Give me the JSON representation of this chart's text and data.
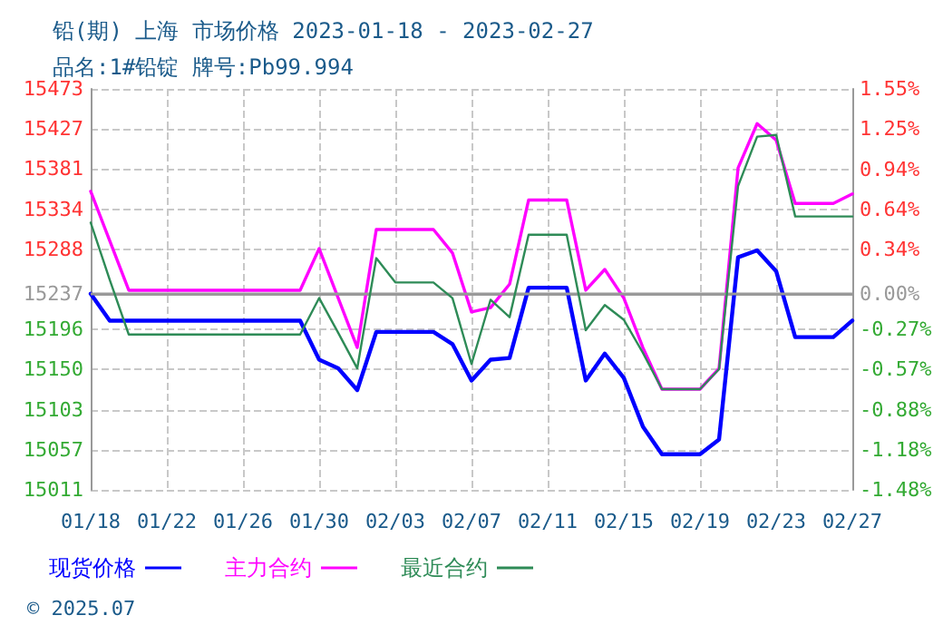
{
  "chart_data": {
    "type": "line",
    "title": "铅(期) 上海 市场价格 2023-01-18 - 2023-02-27",
    "subtitle": "品名:1#铅锭 牌号:Pb99.994",
    "x": [
      "2023-01-18",
      "2023-01-19",
      "2023-01-20",
      "2023-01-21",
      "2023-01-22",
      "2023-01-23",
      "2023-01-24",
      "2023-01-25",
      "2023-01-26",
      "2023-01-27",
      "2023-01-28",
      "2023-01-29",
      "2023-01-30",
      "2023-01-31",
      "2023-02-01",
      "2023-02-02",
      "2023-02-03",
      "2023-02-04",
      "2023-02-05",
      "2023-02-06",
      "2023-02-07",
      "2023-02-08",
      "2023-02-09",
      "2023-02-10",
      "2023-02-11",
      "2023-02-12",
      "2023-02-13",
      "2023-02-14",
      "2023-02-15",
      "2023-02-16",
      "2023-02-17",
      "2023-02-18",
      "2023-02-19",
      "2023-02-20",
      "2023-02-21",
      "2023-02-22",
      "2023-02-23",
      "2023-02-24",
      "2023-02-25",
      "2023-02-26",
      "2023-02-27"
    ],
    "series": [
      {
        "name": "现货价格",
        "color": "#0000ff",
        "values": [
          15237,
          15206,
          15206,
          15206,
          15206,
          15206,
          15206,
          15206,
          15206,
          15206,
          15206,
          15206,
          15161,
          15151,
          15126,
          15193,
          15193,
          15193,
          15193,
          15179,
          15137,
          15161,
          15163,
          15244,
          15244,
          15244,
          15137,
          15168,
          15140,
          15084,
          15052,
          15052,
          15052,
          15069,
          15279,
          15287,
          15263,
          15187,
          15187,
          15187,
          15206
        ]
      },
      {
        "name": "主力合约",
        "color": "#ff00ff",
        "values": [
          15355,
          15298,
          15241,
          15241,
          15241,
          15241,
          15241,
          15241,
          15241,
          15241,
          15241,
          15241,
          15289,
          15232,
          15175,
          15311,
          15311,
          15311,
          15311,
          15284,
          15216,
          15221,
          15248,
          15345,
          15345,
          15345,
          15241,
          15265,
          15232,
          15175,
          15127,
          15127,
          15127,
          15151,
          15382,
          15433,
          15414,
          15341,
          15341,
          15341,
          15352
        ]
      },
      {
        "name": "最近合约",
        "color": "#2e8b57",
        "values": [
          15319,
          15253,
          15190,
          15190,
          15190,
          15190,
          15190,
          15190,
          15190,
          15190,
          15190,
          15190,
          15232,
          15192,
          15151,
          15278,
          15250,
          15250,
          15250,
          15232,
          15156,
          15230,
          15210,
          15305,
          15305,
          15305,
          15195,
          15224,
          15207,
          15169,
          15127,
          15127,
          15127,
          15150,
          15361,
          15418,
          15420,
          15326,
          15326,
          15326,
          15326
        ]
      }
    ],
    "xlim": [
      "2023-01-18",
      "2023-02-27"
    ],
    "xticks": [
      {
        "value": "2023-01-18",
        "label": "01/18"
      },
      {
        "value": "2023-01-22",
        "label": "01/22"
      },
      {
        "value": "2023-01-26",
        "label": "01/26"
      },
      {
        "value": "2023-01-30",
        "label": "01/30"
      },
      {
        "value": "2023-02-03",
        "label": "02/03"
      },
      {
        "value": "2023-02-07",
        "label": "02/07"
      },
      {
        "value": "2023-02-11",
        "label": "02/11"
      },
      {
        "value": "2023-02-15",
        "label": "02/15"
      },
      {
        "value": "2023-02-19",
        "label": "02/19"
      },
      {
        "value": "2023-02-23",
        "label": "02/23"
      },
      {
        "value": "2023-02-27",
        "label": "02/27"
      }
    ],
    "ylim": [
      15011,
      15473
    ],
    "yticks": [
      15011,
      15057,
      15103,
      15150,
      15196,
      15237,
      15288,
      15334,
      15381,
      15427,
      15473
    ],
    "y2lim": [
      -1.48,
      1.55
    ],
    "y2ticks": [
      {
        "value": -1.48,
        "label": "-1.48%"
      },
      {
        "value": -1.18,
        "label": "-1.18%"
      },
      {
        "value": -0.88,
        "label": "-0.88%"
      },
      {
        "value": -0.57,
        "label": "-0.57%"
      },
      {
        "value": -0.27,
        "label": "-0.27%"
      },
      {
        "value": 0,
        "label": "0.00%"
      },
      {
        "value": 0.34,
        "label": "0.34%"
      },
      {
        "value": 0.64,
        "label": "0.64%"
      },
      {
        "value": 0.94,
        "label": "0.94%"
      },
      {
        "value": 1.25,
        "label": "1.25%"
      },
      {
        "value": 1.55,
        "label": "1.55%"
      }
    ],
    "ref_lines": [
      {
        "axis": "y",
        "value": 15237,
        "color": "#999999",
        "line_style": "solid"
      }
    ],
    "grid": true,
    "legend": "bottom",
    "marker": "none",
    "line_style": "solid",
    "annotations": [
      "© 2025.07"
    ]
  }
}
